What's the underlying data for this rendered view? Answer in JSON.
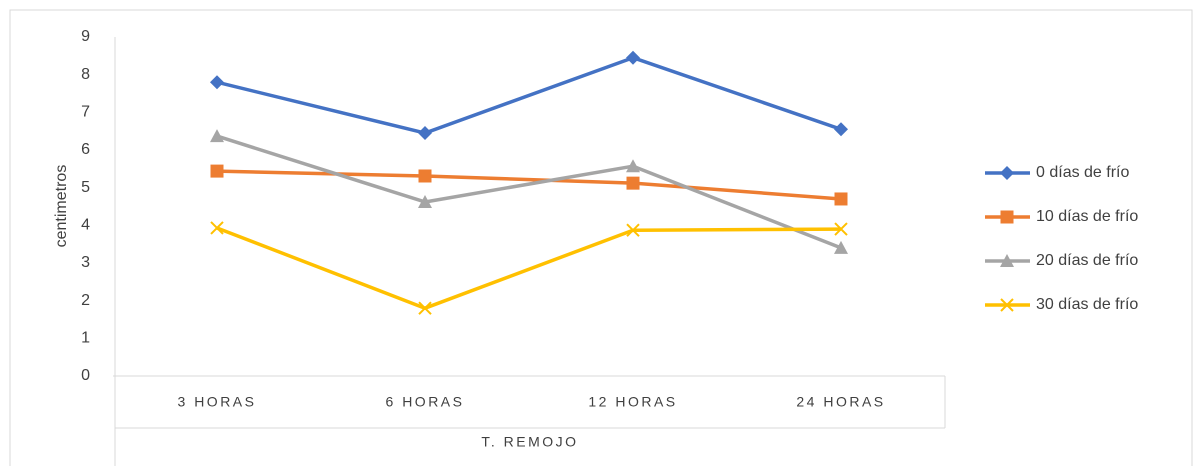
{
  "chart_data": {
    "type": "line",
    "x_label": "T. REMOJO",
    "y_label": "centimetros",
    "categories": [
      "3 HORAS",
      "6 HORAS",
      "12 HORAS",
      "24 HORAS"
    ],
    "series": [
      {
        "name": "0 días de frío",
        "color": "#4472c4",
        "marker": "diamond",
        "values": [
          7.8,
          6.45,
          8.45,
          6.55
        ]
      },
      {
        "name": "10 días de frío",
        "color": "#ed7d31",
        "marker": "square",
        "values": [
          5.44,
          5.31,
          5.12,
          4.7
        ]
      },
      {
        "name": "20 días de frío",
        "color": "#a5a5a5",
        "marker": "triangle",
        "values": [
          6.37,
          4.62,
          5.57,
          3.4
        ]
      },
      {
        "name": "30 días de frío",
        "color": "#ffc000",
        "marker": "x",
        "values": [
          3.93,
          1.8,
          3.87,
          3.9
        ]
      }
    ],
    "ylim": [
      0,
      9
    ],
    "yticks": [
      0,
      1,
      2,
      3,
      4,
      5,
      6,
      7,
      8,
      9
    ],
    "legend": "right"
  }
}
